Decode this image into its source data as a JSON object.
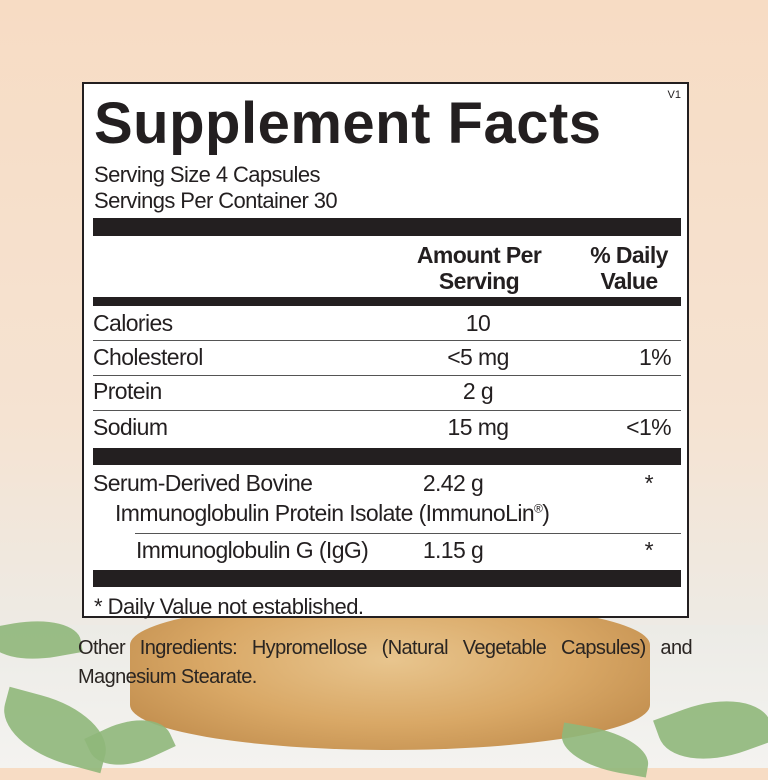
{
  "label": {
    "version": "V1",
    "title": "Supplement Facts",
    "serving_size": "Serving Size 4 Capsules",
    "servings_per_container": "Servings Per Container 30",
    "header": {
      "amount_line1": "Amount Per",
      "amount_line2": "Serving",
      "dv_line1": "% Daily",
      "dv_line2": "Value"
    },
    "rows": [
      {
        "name": "Calories",
        "amount": "10",
        "dv": ""
      },
      {
        "name": "Cholesterol",
        "amount": "<5 mg",
        "dv": "1%"
      },
      {
        "name": "Protein",
        "amount": "2 g",
        "dv": ""
      },
      {
        "name": "Sodium",
        "amount": "15 mg",
        "dv": "<1%"
      }
    ],
    "ingredients": [
      {
        "name": "Serum-Derived Bovine",
        "name_cont": "Immunoglobulin Protein Isolate (ImmunoLin",
        "reg": "®",
        "name_end": ")",
        "amount": "2.42 g",
        "dv": "*"
      },
      {
        "name": "Immunoglobulin G (IgG)",
        "amount": "1.15 g",
        "dv": "*"
      }
    ],
    "footnote": "* Daily Value not established."
  },
  "other_ingredients": "Other Ingredients: Hypromellose (Natural Vegetable Capsules) and Magnesium Stearate."
}
